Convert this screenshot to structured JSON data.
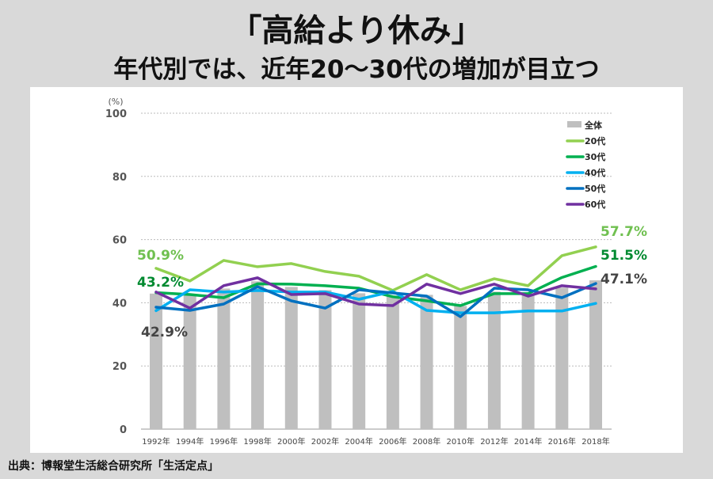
{
  "header": {
    "title": "「高給より休み」",
    "subtitle": "年代別では、近年20〜30代の増加が目立つ"
  },
  "source": "出典：博報堂生活総合研究所「生活定点」",
  "chart_data": {
    "type": "bar+line",
    "ylabel": "(%)",
    "ylim": [
      0,
      100
    ],
    "yticks": [
      "0",
      "20",
      "40",
      "60",
      "80",
      "100"
    ],
    "grid": true,
    "legend_position": "top-right",
    "categories": [
      "1992年",
      "1994年",
      "1996年",
      "1998年",
      "2000年",
      "2002年",
      "2004年",
      "2006年",
      "2008年",
      "2010年",
      "2012年",
      "2014年",
      "2016年",
      "2018年"
    ],
    "bars": {
      "name": "全体",
      "color": "#bfbfbf",
      "values": [
        42.9,
        42.3,
        44.5,
        46.8,
        45.0,
        44.0,
        43.0,
        42.3,
        42.5,
        39.0,
        43.5,
        42.8,
        44.8,
        47.1
      ]
    },
    "series": [
      {
        "name": "20代",
        "color": "#92d050",
        "values": [
          50.9,
          46.9,
          53.4,
          51.4,
          52.4,
          49.9,
          48.4,
          43.9,
          48.9,
          44.1,
          47.6,
          45.4,
          54.9,
          57.7
        ]
      },
      {
        "name": "30代",
        "color": "#00b050",
        "values": [
          43.2,
          42.6,
          41.6,
          46.0,
          45.9,
          45.4,
          44.6,
          41.9,
          40.6,
          39.1,
          42.9,
          42.9,
          48.0,
          51.5
        ]
      },
      {
        "name": "40代",
        "color": "#00b0f0",
        "values": [
          37.5,
          44.1,
          43.4,
          43.9,
          43.4,
          43.4,
          41.1,
          43.6,
          37.6,
          36.8,
          36.8,
          37.4,
          37.4,
          39.8
        ]
      },
      {
        "name": "50代",
        "color": "#0070c0",
        "values": [
          38.6,
          37.6,
          39.6,
          45.1,
          40.6,
          38.3,
          44.1,
          43.1,
          42.1,
          35.6,
          44.6,
          44.1,
          41.6,
          46.1
        ]
      },
      {
        "name": "60代",
        "color": "#7030a0",
        "values": [
          43.4,
          38.3,
          45.4,
          47.9,
          42.6,
          42.9,
          39.6,
          39.1,
          45.9,
          42.9,
          45.9,
          42.1,
          45.4,
          44.4
        ]
      }
    ],
    "annotations": [
      {
        "text": "50.9%",
        "color": "#70c050"
      },
      {
        "text": "43.2%",
        "color": "#008a30"
      },
      {
        "text": "42.9%",
        "color": "#444444"
      },
      {
        "text": "57.7%",
        "color": "#70c050"
      },
      {
        "text": "51.5%",
        "color": "#008a30"
      },
      {
        "text": "47.1%",
        "color": "#444444"
      }
    ]
  }
}
